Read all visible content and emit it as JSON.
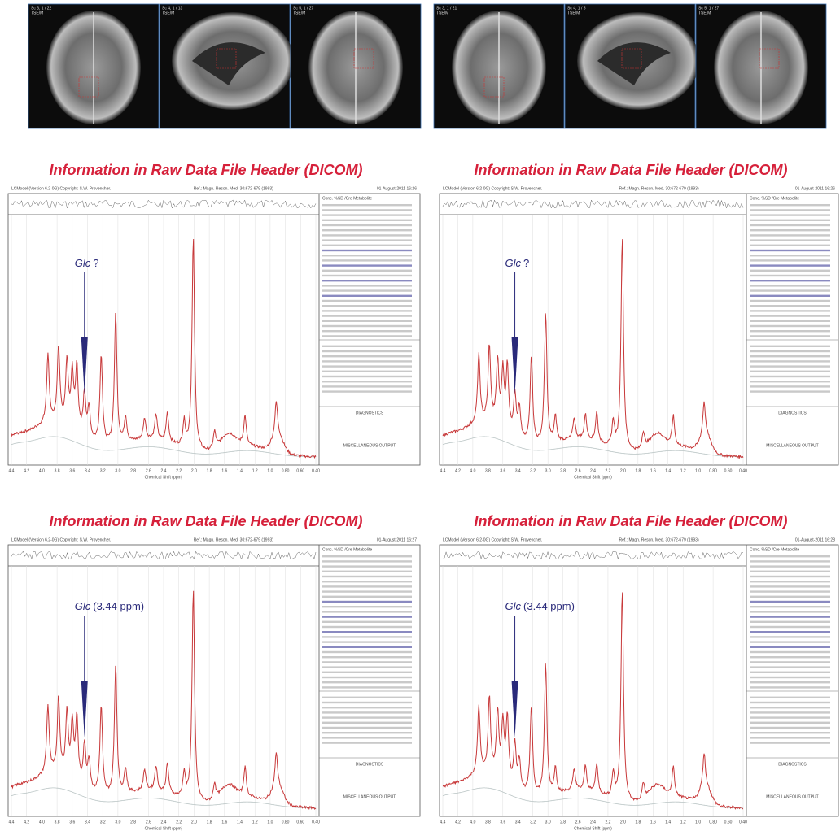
{
  "mri_strips": [
    {
      "images": [
        {
          "label": "Sc 3, 1 / 22",
          "sequence": "TSE/M"
        },
        {
          "label": "Sc 4, 1 / 13",
          "sequence": "TSE/M"
        },
        {
          "label": "Sc 5, 1 / 27",
          "sequence": "TSE/M"
        }
      ]
    },
    {
      "images": [
        {
          "label": "Sc 3, 1 / 21",
          "sequence": "TSE/M"
        },
        {
          "label": "Sc 4, 1 / 5",
          "sequence": "TSE/M"
        },
        {
          "label": "Sc 5, 1 / 27",
          "sequence": "TSE/M"
        }
      ]
    }
  ],
  "axis": {
    "ticks": [
      "4.4",
      "4.2",
      "4.0",
      "3.8",
      "3.6",
      "3.4",
      "3.2",
      "3.0",
      "2.8",
      "2.6",
      "2.4",
      "2.2",
      "2.0",
      "1.8",
      "1.6",
      "1.4",
      "1.2",
      "1.0",
      "0.80",
      "0.60",
      "0.40"
    ],
    "label": "Chemical Shift (ppm)"
  },
  "table": {
    "header": "Conc. %SD /Cre Metabolite",
    "diagnostics": "DIAGNOSTICS",
    "misc": "MISCELLANEOUS OUTPUT"
  },
  "panels": [
    {
      "title": "Information in Raw Data File Header (DICOM)",
      "program": "LCModel (Version 6.2-0G) Copyright: S.W. Provencher.",
      "reference": "Ref.: Magn. Reson. Med. 30:672-679 (1993)",
      "date": "01-August-2011 16:26",
      "annotation_label": "Glc",
      "annotation_note": "?"
    },
    {
      "title": "Information in Raw Data File Header (DICOM)",
      "program": "LCModel (Version 6.2-0G) Copyright: S.W. Provencher.",
      "reference": "Ref.: Magn. Reson. Med. 30:672-679 (1993)",
      "date": "01-August-2011 16:26",
      "annotation_label": "Glc",
      "annotation_note": "?"
    },
    {
      "title": "Information in Raw Data File Header (DICOM)",
      "program": "LCModel (Version 6.2-0G) Copyright: S.W. Provencher.",
      "reference": "Ref.: Magn. Reson. Med. 30:672-679 (1993)",
      "date": "01-August-2011 16:27",
      "annotation_label": "Glc",
      "annotation_note": "(3.44 ppm)"
    },
    {
      "title": "Information in Raw Data File Header (DICOM)",
      "program": "LCModel (Version 6.2-0G) Copyright: S.W. Provencher.",
      "reference": "Ref.: Magn. Reson. Med. 30:672-679 (1993)",
      "date": "01-August-2011 16:28",
      "annotation_label": "Glc",
      "annotation_note": "(3.44 ppm)"
    }
  ]
}
